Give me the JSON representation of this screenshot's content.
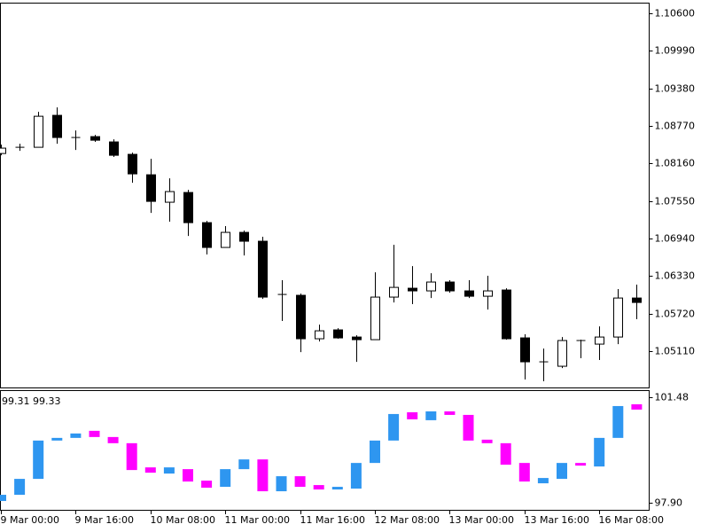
{
  "chart_data": [
    {
      "type": "candlestick",
      "categories": [
        "9 Mar 00:00",
        null,
        null,
        null,
        "9 Mar 16:00",
        null,
        null,
        null,
        "10 Mar 08:00",
        null,
        null,
        null,
        "11 Mar 00:00",
        null,
        null,
        null,
        "11 Mar 16:00",
        null,
        null,
        null,
        "12 Mar 08:00",
        null,
        null,
        null,
        "13 Mar 00:00",
        null,
        null,
        null,
        "13 Mar 16:00",
        null,
        null,
        null,
        "16 Mar 08:00",
        null,
        null
      ],
      "open": [
        1.08323,
        1.08424,
        1.08424,
        1.08943,
        1.08583,
        1.08597,
        1.08511,
        1.08309,
        1.07977,
        1.07531,
        1.07689,
        1.07199,
        1.06796,
        1.07041,
        1.06897,
        1.06032,
        1.06018,
        1.05312,
        1.05456,
        1.0534,
        1.05297,
        1.05989,
        1.06133,
        1.0609,
        1.06234,
        1.0609,
        1.06003,
        1.06104,
        1.05326,
        1.04937,
        1.04865,
        1.05283,
        1.05225,
        1.0534,
        1.05974
      ],
      "high": [
        1.08467,
        1.08482,
        1.09,
        1.09073,
        1.08698,
        1.08626,
        1.08554,
        1.08338,
        1.08237,
        1.0792,
        1.07732,
        1.07228,
        1.07142,
        1.0707,
        1.06969,
        1.06263,
        1.06046,
        1.05542,
        1.05484,
        1.05369,
        1.06392,
        1.06839,
        1.06493,
        1.06378,
        1.06263,
        1.06263,
        1.06335,
        1.06133,
        1.05384,
        1.05153,
        1.0534,
        1.05297,
        1.05513,
        1.06119,
        1.06191
      ],
      "low": [
        1.08294,
        1.08366,
        1.08424,
        1.08482,
        1.08381,
        1.08511,
        1.08266,
        1.07848,
        1.07358,
        1.07214,
        1.06983,
        1.06681,
        1.06796,
        1.06666,
        1.0596,
        1.056,
        1.05095,
        1.05268,
        1.05312,
        1.04937,
        1.05297,
        1.05902,
        1.05874,
        1.05974,
        1.06061,
        1.05974,
        1.05787,
        1.05297,
        1.04649,
        1.0462,
        1.04836,
        1.04995,
        1.04966,
        1.05225,
        1.05629
      ],
      "close": [
        1.0841,
        1.08424,
        1.08928,
        1.08583,
        1.08583,
        1.08539,
        1.08294,
        1.07992,
        1.07545,
        1.07704,
        1.07199,
        1.06796,
        1.07041,
        1.06897,
        1.05989,
        1.06032,
        1.05312,
        1.05441,
        1.05326,
        1.05297,
        1.05989,
        1.06147,
        1.0609,
        1.06234,
        1.0609,
        1.06003,
        1.0609,
        1.05312,
        1.04937,
        1.04937,
        1.05283,
        1.05283,
        1.0534,
        1.05974,
        1.05902
      ],
      "up_color": "#ffffff",
      "down_color": "#000000",
      "ylim": [
        1.0452,
        1.1076
      ],
      "yticks": [
        {
          "value": 1.106,
          "label": "1.10600"
        },
        {
          "value": 1.0999,
          "label": "1.09990"
        },
        {
          "value": 1.0938,
          "label": "1.09380"
        },
        {
          "value": 1.0877,
          "label": "1.08770"
        },
        {
          "value": 1.0816,
          "label": "1.08160"
        },
        {
          "value": 1.0755,
          "label": "1.07550"
        },
        {
          "value": 1.0694,
          "label": "1.06940"
        },
        {
          "value": 1.0633,
          "label": "1.06330"
        },
        {
          "value": 1.0572,
          "label": "1.05720"
        },
        {
          "value": 1.0511,
          "label": "1.05110"
        }
      ]
    },
    {
      "type": "floating-bar",
      "header": "99.31 99.33",
      "open": [
        97.96,
        98.17,
        98.71,
        100.01,
        100.1,
        100.34,
        100.13,
        99.92,
        99.1,
        98.89,
        99.04,
        98.65,
        98.44,
        99.04,
        99.37,
        98.29,
        98.8,
        98.5,
        98.35,
        98.38,
        99.25,
        100.01,
        100.97,
        100.7,
        101.0,
        100.88,
        100.04,
        99.92,
        99.25,
        98.56,
        98.71,
        99.25,
        99.13,
        100.1,
        101.24
      ],
      "close": [
        98.17,
        98.71,
        100.01,
        100.1,
        100.25,
        100.13,
        99.92,
        99.01,
        98.92,
        99.1,
        98.62,
        98.41,
        99.04,
        99.37,
        98.29,
        98.8,
        98.44,
        98.35,
        98.44,
        99.25,
        100.01,
        100.91,
        100.73,
        101.0,
        100.88,
        100.01,
        99.92,
        99.19,
        98.62,
        98.74,
        99.25,
        99.16,
        100.1,
        101.18,
        101.06
      ],
      "up_color": "#2e96f0",
      "down_color": "#ff00ff",
      "ylim": [
        97.66,
        101.69
      ],
      "yticks": [
        101.48,
        {
          "value": 97.9,
          "label": "97.90"
        }
      ]
    }
  ]
}
